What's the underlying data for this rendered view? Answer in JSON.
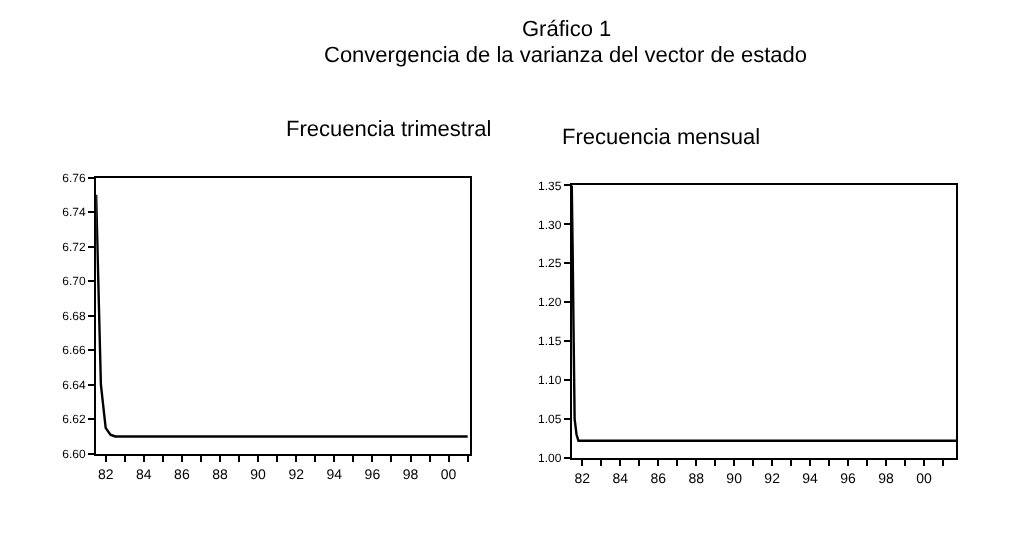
{
  "chart_data": [
    {
      "type": "line",
      "title": "Frecuencia trimestral",
      "annotations": [
        "Gráfico 1",
        "Convergencia de la varianza del vector de estado"
      ],
      "x": [
        1981.5,
        1981.75,
        1982.0,
        1982.25,
        1982.5,
        1983.0,
        1990.0,
        2001.0
      ],
      "series": [
        {
          "color": "#000000",
          "values": [
            6.75,
            6.64,
            6.615,
            6.611,
            6.61,
            6.61,
            6.61,
            6.61
          ]
        }
      ],
      "xlim": [
        1981.5,
        2001.1
      ],
      "xticks": [
        {
          "value": 1982,
          "label": "82"
        },
        {
          "value": 1983,
          "label": null
        },
        {
          "value": 1984,
          "label": "84"
        },
        {
          "value": 1985,
          "label": null
        },
        {
          "value": 1986,
          "label": "86"
        },
        {
          "value": 1987,
          "label": null
        },
        {
          "value": 1988,
          "label": "88"
        },
        {
          "value": 1989,
          "label": null
        },
        {
          "value": 1990,
          "label": "90"
        },
        {
          "value": 1991,
          "label": null
        },
        {
          "value": 1992,
          "label": "92"
        },
        {
          "value": 1993,
          "label": null
        },
        {
          "value": 1994,
          "label": "94"
        },
        {
          "value": 1995,
          "label": null
        },
        {
          "value": 1996,
          "label": "96"
        },
        {
          "value": 1997,
          "label": null
        },
        {
          "value": 1998,
          "label": "98"
        },
        {
          "value": 1999,
          "label": null
        },
        {
          "value": 2000,
          "label": "00"
        },
        {
          "value": 2001,
          "label": null
        }
      ],
      "ylim": [
        6.6,
        6.76
      ],
      "yticks": [
        {
          "value": 6.6,
          "label": "6.60"
        },
        {
          "value": 6.62,
          "label": "6.62"
        },
        {
          "value": 6.64,
          "label": "6.64"
        },
        {
          "value": 6.66,
          "label": "6.66"
        },
        {
          "value": 6.68,
          "label": "6.68"
        },
        {
          "value": 6.7,
          "label": "6.70"
        },
        {
          "value": 6.72,
          "label": "6.72"
        },
        {
          "value": 6.74,
          "label": "6.74"
        },
        {
          "value": 6.76,
          "label": "6.76"
        }
      ],
      "line_style": "solid",
      "marker": "none"
    },
    {
      "type": "line",
      "title": "Frecuencia mensual",
      "x": [
        1981.45,
        1981.5,
        1981.55,
        1981.6,
        1981.7,
        1981.8,
        1982.0,
        1990.0,
        2001.7
      ],
      "series": [
        {
          "color": "#000000",
          "values": [
            1.35,
            1.26,
            1.15,
            1.05,
            1.03,
            1.022,
            1.022,
            1.022,
            1.022
          ]
        }
      ],
      "xlim": [
        1981.45,
        2001.7
      ],
      "xticks": [
        {
          "value": 1982,
          "label": "82"
        },
        {
          "value": 1983,
          "label": null
        },
        {
          "value": 1984,
          "label": "84"
        },
        {
          "value": 1985,
          "label": null
        },
        {
          "value": 1986,
          "label": "86"
        },
        {
          "value": 1987,
          "label": null
        },
        {
          "value": 1988,
          "label": "88"
        },
        {
          "value": 1989,
          "label": null
        },
        {
          "value": 1990,
          "label": "90"
        },
        {
          "value": 1991,
          "label": null
        },
        {
          "value": 1992,
          "label": "92"
        },
        {
          "value": 1993,
          "label": null
        },
        {
          "value": 1994,
          "label": "94"
        },
        {
          "value": 1995,
          "label": null
        },
        {
          "value": 1996,
          "label": "96"
        },
        {
          "value": 1997,
          "label": null
        },
        {
          "value": 1998,
          "label": "98"
        },
        {
          "value": 1999,
          "label": null
        },
        {
          "value": 2000,
          "label": "00"
        },
        {
          "value": 2001,
          "label": null
        }
      ],
      "ylim": [
        1.0,
        1.35
      ],
      "yticks": [
        {
          "value": 1.0,
          "label": "1.00"
        },
        {
          "value": 1.05,
          "label": "1.05"
        },
        {
          "value": 1.1,
          "label": "1.10"
        },
        {
          "value": 1.15,
          "label": "1.15"
        },
        {
          "value": 1.2,
          "label": "1.20"
        },
        {
          "value": 1.25,
          "label": "1.25"
        },
        {
          "value": 1.3,
          "label": "1.30"
        },
        {
          "value": 1.35,
          "label": "1.35"
        }
      ],
      "line_style": "solid",
      "marker": "none"
    }
  ]
}
